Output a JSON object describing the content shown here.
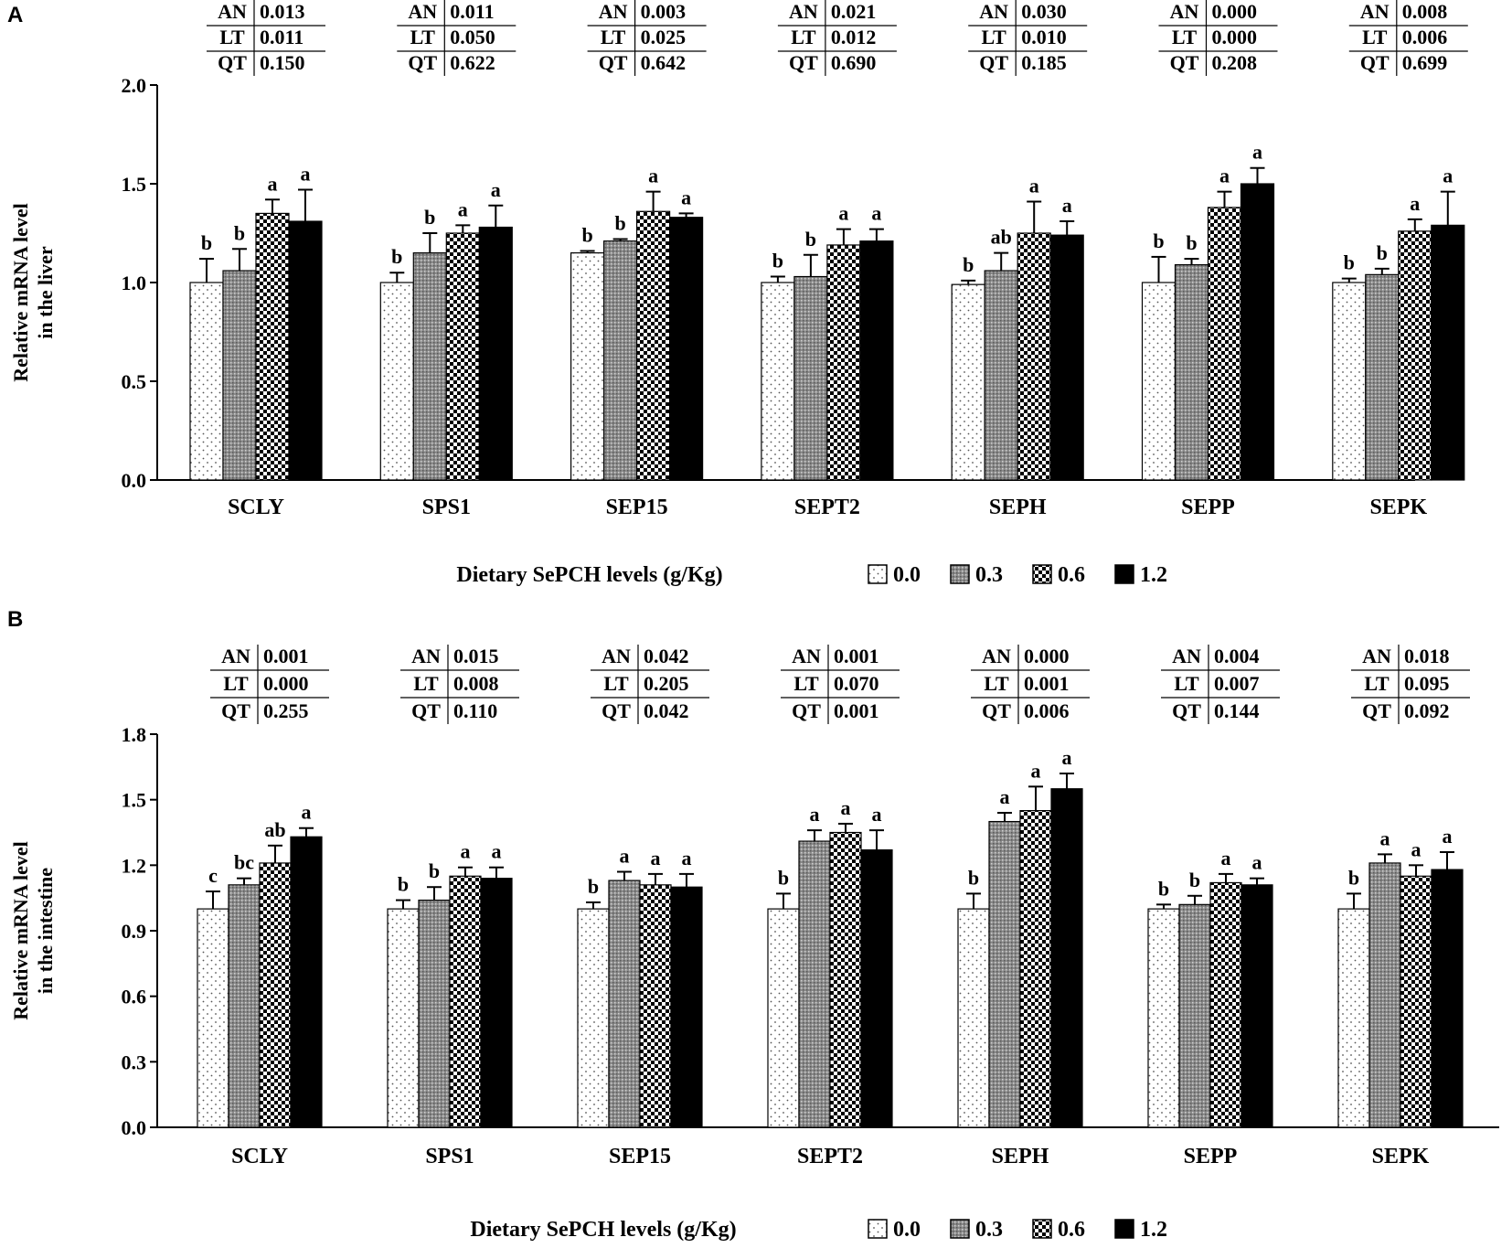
{
  "chart_data": [
    {
      "type": "bar",
      "panel": "A",
      "ylabel": [
        "Relative mRNA level",
        "in the liver"
      ],
      "xlabel": "Dietary SePCH levels (g/Kg)",
      "ylim": [
        0,
        2.0
      ],
      "yticks": [
        "0.0",
        "0.5",
        "1.0",
        "1.5",
        "2.0"
      ],
      "categories": [
        "SCLY",
        "SPS1",
        "SEP15",
        "SEPT2",
        "SEPH",
        "SEPP",
        "SEPK"
      ],
      "legend": [
        "0.0",
        "0.3",
        "0.6",
        "1.2"
      ],
      "series": [
        {
          "name": "0.0",
          "values": [
            1.0,
            1.0,
            1.15,
            1.0,
            0.99,
            1.0,
            1.0
          ],
          "errors": [
            0.12,
            0.05,
            0.01,
            0.03,
            0.02,
            0.13,
            0.02
          ],
          "letters": [
            "b",
            "b",
            "b",
            "b",
            "b",
            "b",
            "b"
          ]
        },
        {
          "name": "0.3",
          "values": [
            1.06,
            1.15,
            1.21,
            1.03,
            1.06,
            1.09,
            1.04
          ],
          "errors": [
            0.11,
            0.1,
            0.01,
            0.11,
            0.09,
            0.03,
            0.03
          ],
          "letters": [
            "b",
            "b",
            "b",
            "b",
            "ab",
            "b",
            "b"
          ]
        },
        {
          "name": "0.6",
          "values": [
            1.35,
            1.25,
            1.36,
            1.19,
            1.25,
            1.38,
            1.26
          ],
          "errors": [
            0.07,
            0.04,
            0.1,
            0.08,
            0.16,
            0.08,
            0.06
          ],
          "letters": [
            "a",
            "a",
            "a",
            "a",
            "a",
            "a",
            "a"
          ]
        },
        {
          "name": "1.2",
          "values": [
            1.31,
            1.28,
            1.33,
            1.21,
            1.24,
            1.5,
            1.29
          ],
          "errors": [
            0.16,
            0.11,
            0.02,
            0.06,
            0.07,
            0.08,
            0.17
          ],
          "letters": [
            "a",
            "a",
            "a",
            "a",
            "a",
            "a",
            "a"
          ]
        }
      ],
      "stats": [
        {
          "AN": "0.013",
          "LT": "0.011",
          "QT": "0.150"
        },
        {
          "AN": "0.011",
          "LT": "0.050",
          "QT": "0.622"
        },
        {
          "AN": "0.003",
          "LT": "0.025",
          "QT": "0.642"
        },
        {
          "AN": "0.021",
          "LT": "0.012",
          "QT": "0.690"
        },
        {
          "AN": "0.030",
          "LT": "0.010",
          "QT": "0.185"
        },
        {
          "AN": "0.000",
          "LT": "0.000",
          "QT": "0.208"
        },
        {
          "AN": "0.008",
          "LT": "0.006",
          "QT": "0.699"
        }
      ]
    },
    {
      "type": "bar",
      "panel": "B",
      "ylabel": [
        "Relative mRNA level",
        "in the intestine"
      ],
      "xlabel": "Dietary SePCH levels (g/Kg)",
      "ylim": [
        0,
        1.8
      ],
      "yticks": [
        "0.0",
        "0.3",
        "0.6",
        "0.9",
        "1.2",
        "1.5",
        "1.8"
      ],
      "categories": [
        "SCLY",
        "SPS1",
        "SEP15",
        "SEPT2",
        "SEPH",
        "SEPP",
        "SEPK"
      ],
      "legend": [
        "0.0",
        "0.3",
        "0.6",
        "1.2"
      ],
      "series": [
        {
          "name": "0.0",
          "values": [
            1.0,
            1.0,
            1.0,
            1.0,
            1.0,
            1.0,
            1.0
          ],
          "errors": [
            0.08,
            0.04,
            0.03,
            0.07,
            0.07,
            0.02,
            0.07
          ],
          "letters": [
            "c",
            "b",
            "b",
            "b",
            "b",
            "b",
            "b"
          ]
        },
        {
          "name": "0.3",
          "values": [
            1.11,
            1.04,
            1.13,
            1.31,
            1.4,
            1.02,
            1.21
          ],
          "errors": [
            0.03,
            0.06,
            0.04,
            0.05,
            0.04,
            0.04,
            0.04
          ],
          "letters": [
            "bc",
            "b",
            "a",
            "a",
            "a",
            "b",
            "a"
          ]
        },
        {
          "name": "0.6",
          "values": [
            1.21,
            1.15,
            1.11,
            1.35,
            1.45,
            1.12,
            1.15
          ],
          "errors": [
            0.08,
            0.04,
            0.05,
            0.04,
            0.11,
            0.04,
            0.05
          ],
          "letters": [
            "ab",
            "a",
            "a",
            "a",
            "a",
            "a",
            "a"
          ]
        },
        {
          "name": "1.2",
          "values": [
            1.33,
            1.14,
            1.1,
            1.27,
            1.55,
            1.11,
            1.18
          ],
          "errors": [
            0.04,
            0.05,
            0.06,
            0.09,
            0.07,
            0.03,
            0.08
          ],
          "letters": [
            "a",
            "a",
            "a",
            "a",
            "a",
            "a",
            "a"
          ]
        }
      ],
      "stats": [
        {
          "AN": "0.001",
          "LT": "0.000",
          "QT": "0.255"
        },
        {
          "AN": "0.015",
          "LT": "0.008",
          "QT": "0.110"
        },
        {
          "AN": "0.042",
          "LT": "0.205",
          "QT": "0.042"
        },
        {
          "AN": "0.001",
          "LT": "0.070",
          "QT": "0.001"
        },
        {
          "AN": "0.000",
          "LT": "0.001",
          "QT": "0.006"
        },
        {
          "AN": "0.004",
          "LT": "0.007",
          "QT": "0.144"
        },
        {
          "AN": "0.018",
          "LT": "0.095",
          "QT": "0.092"
        }
      ]
    }
  ]
}
